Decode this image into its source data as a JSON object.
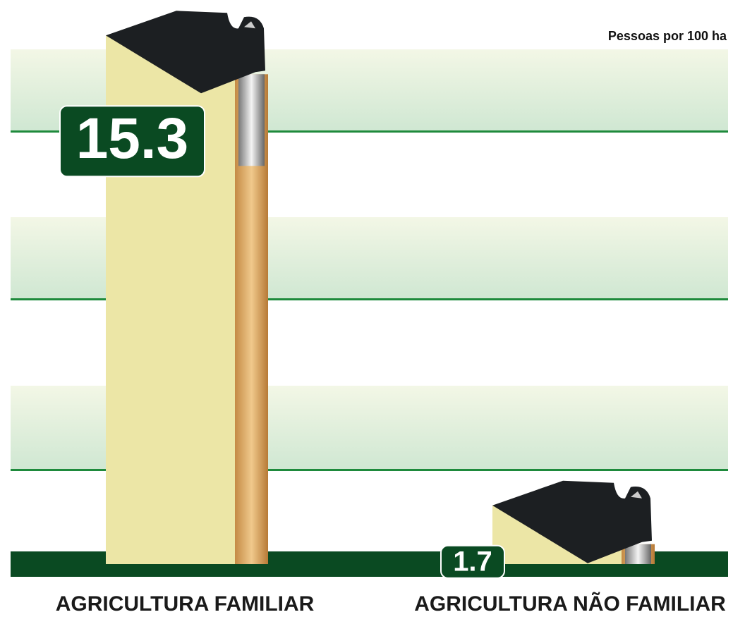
{
  "chart_data": {
    "type": "bar",
    "unit": "Pessoas por 100 ha",
    "categories": [
      "AGRICULTURA FAMILIAR",
      "AGRICULTURA NÃO FAMILIAR"
    ],
    "values": [
      15.3,
      1.7
    ],
    "color": "#ece6a6",
    "ylim": [
      0,
      16
    ]
  }
}
